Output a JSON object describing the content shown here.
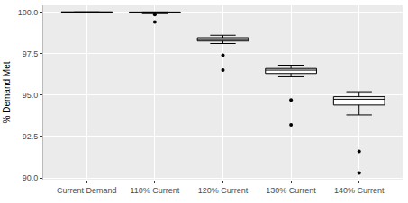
{
  "chart_data": {
    "type": "box",
    "y_label": "% Demand Met",
    "categories": [
      "Current Demand",
      "110% Current",
      "120% Current",
      "130% Current",
      "140% Current"
    ],
    "q1": [
      100.0,
      99.95,
      98.25,
      96.3,
      94.4
    ],
    "median": [
      100.0,
      99.98,
      98.35,
      96.5,
      94.75
    ],
    "q3": [
      100.0,
      100.0,
      98.45,
      96.6,
      94.9
    ],
    "lower": [
      100.0,
      99.9,
      98.1,
      96.1,
      93.8
    ],
    "upper": [
      100.0,
      100.0,
      98.6,
      96.8,
      95.2
    ],
    "outliers": [
      [],
      [
        99.85,
        99.4
      ],
      [
        97.4,
        96.5
      ],
      [
        94.7,
        93.2
      ],
      [
        91.6,
        90.3
      ]
    ],
    "color": "#000000",
    "ylim": [
      89.9,
      100.4
    ],
    "yticks": [
      {
        "value": 90,
        "label": "90.0"
      },
      92.5,
      {
        "value": 95,
        "label": "95.0"
      },
      97.5,
      {
        "value": 100,
        "label": "100.0"
      }
    ],
    "grid": true
  }
}
